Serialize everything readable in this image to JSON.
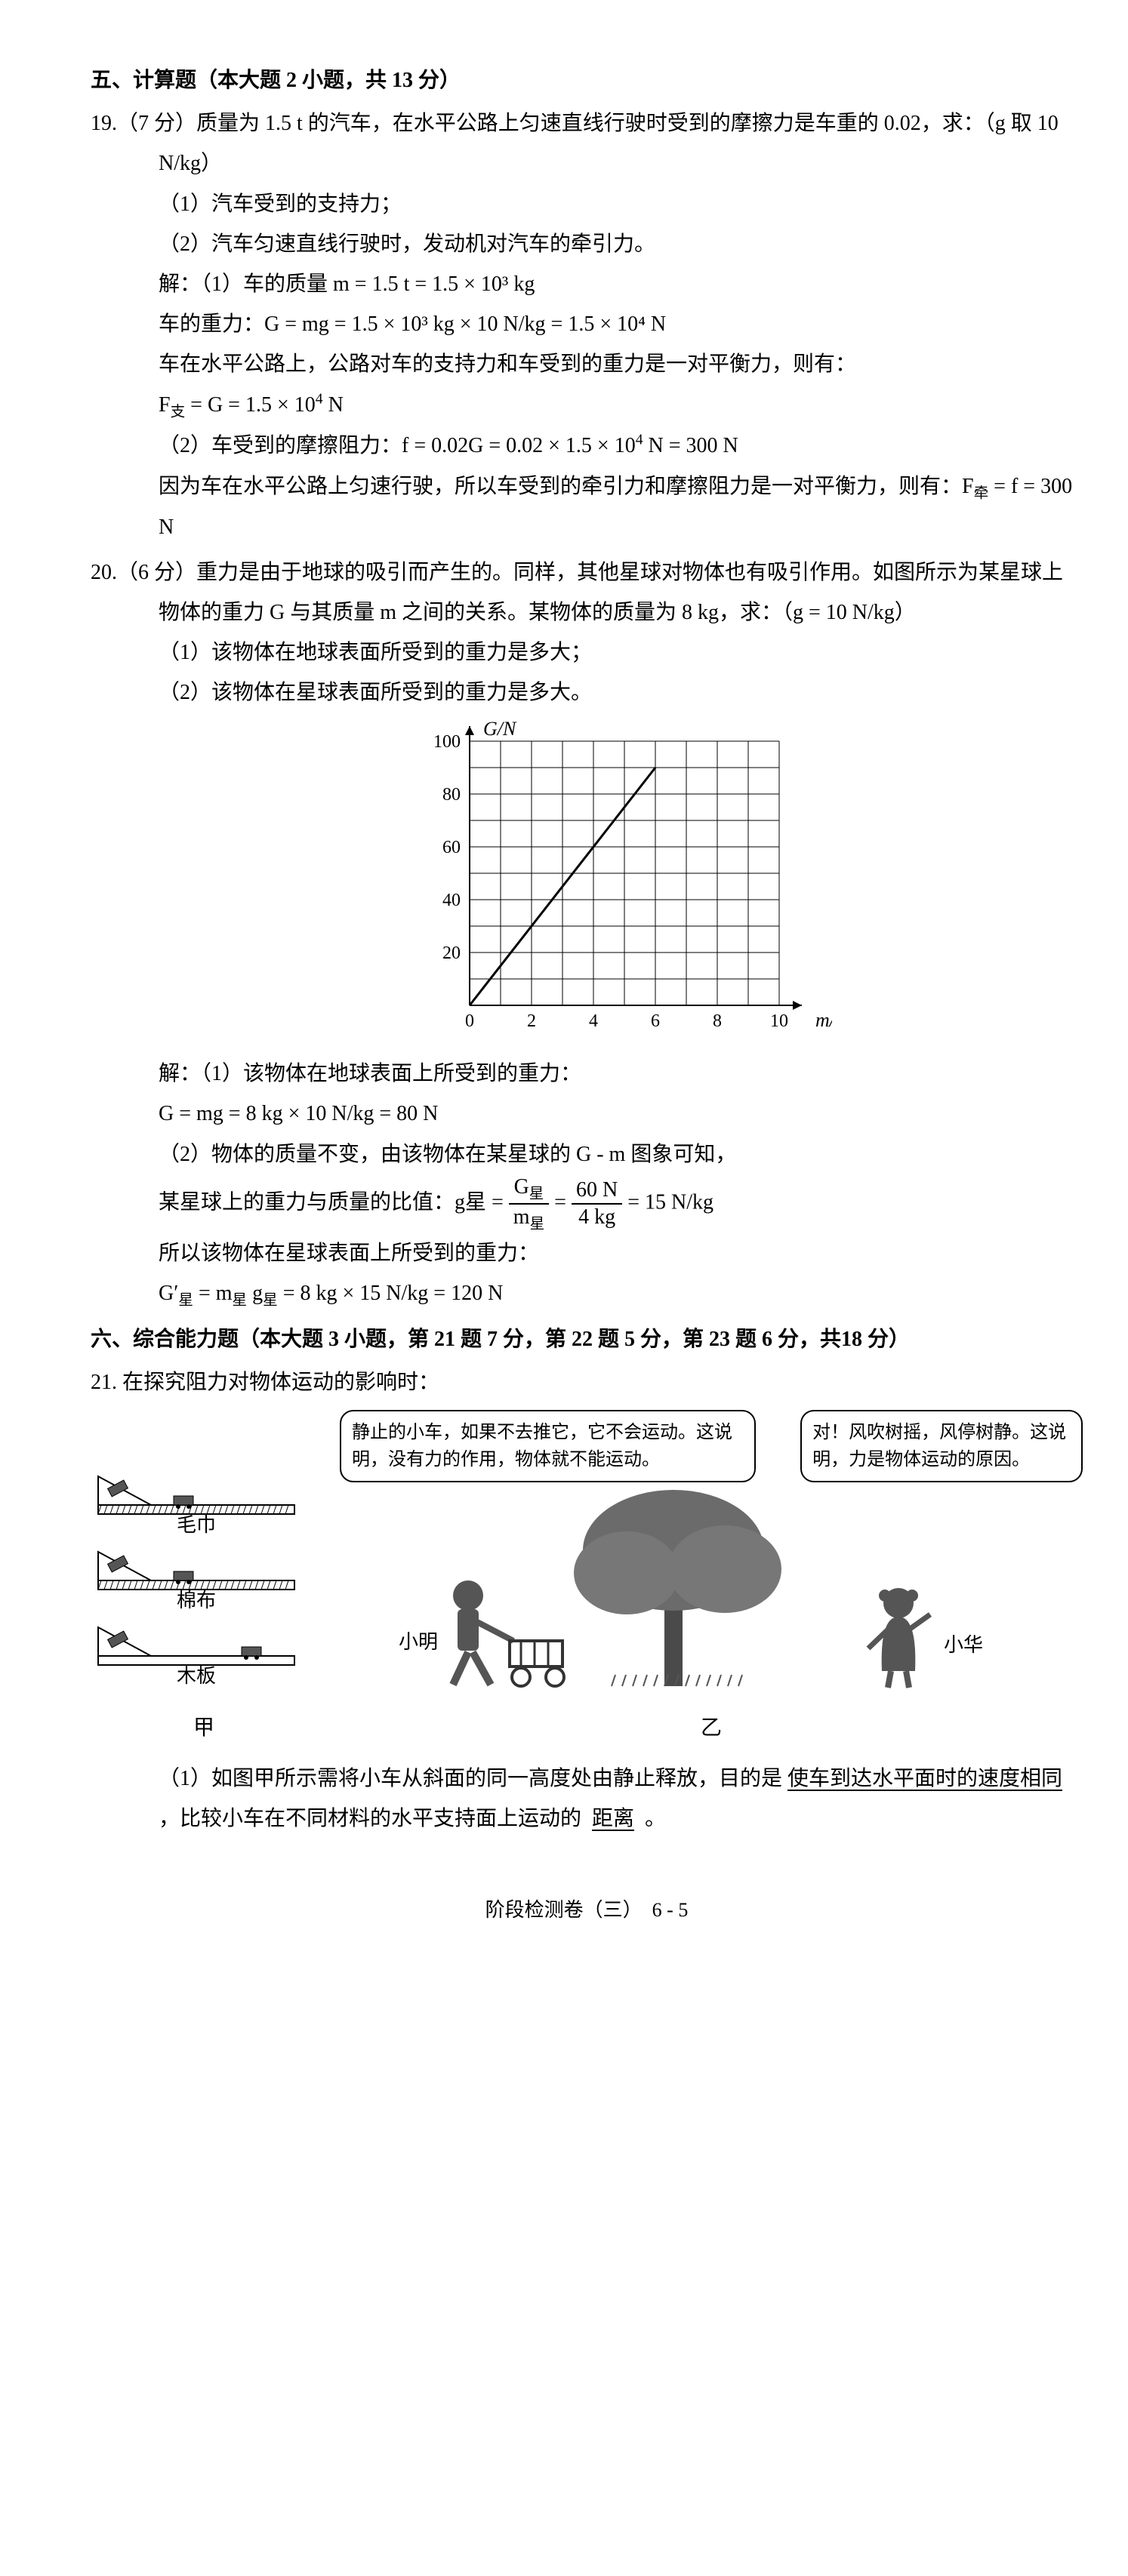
{
  "section5": {
    "title": "五、计算题（本大题 2 小题，共 13 分）",
    "q19": {
      "header": "19.（7 分）质量为 1.5 t 的汽车，在水平公路上匀速直线行驶时受到的摩擦力是车重的 0.02，求：（g 取 10 N/kg）",
      "p1": "（1）汽车受到的支持力；",
      "p2": "（2）汽车匀速直线行驶时，发动机对汽车的牵引力。",
      "a1": "解：（1）车的质量 m = 1.5 t = 1.5 × 10³ kg",
      "a2": "车的重力：G = mg = 1.5 × 10³ kg × 10 N/kg = 1.5 × 10⁴ N",
      "a3": "车在水平公路上，公路对车的支持力和车受到的重力是一对平衡力，则有：",
      "a4": "F支 = G = 1.5 × 10⁴ N",
      "a5": "（2）车受到的摩擦阻力：f = 0.02G = 0.02 × 1.5 × 10⁴ N = 300 N",
      "a6": "因为车在水平公路上匀速行驶，所以车受到的牵引力和摩擦阻力是一对平衡力，则有：F牵 = f = 300 N"
    },
    "q20": {
      "header": "20.（6 分）重力是由于地球的吸引而产生的。同样，其他星球对物体也有吸引作用。如图所示为某星球上物体的重力 G 与其质量 m 之间的关系。某物体的质量为 8 kg，求：（g = 10 N/kg）",
      "p1": "（1）该物体在地球表面所受到的重力是多大；",
      "p2": "（2）该物体在星球表面所受到的重力是多大。",
      "chart": {
        "type": "line",
        "xlabel": "m/kg",
        "ylabel": "G/N",
        "xlim": [
          0,
          10
        ],
        "ylim": [
          0,
          100
        ],
        "xticks": [
          0,
          2,
          4,
          6,
          8,
          10
        ],
        "yticks": [
          20,
          40,
          60,
          80,
          100
        ],
        "data_points": [
          [
            0,
            0
          ],
          [
            6,
            90
          ]
        ],
        "line_color": "#000000",
        "line_width": 3,
        "grid_color": "#000000",
        "grid_width": 1,
        "background_color": "#ffffff",
        "tick_fontsize": 24,
        "label_fontsize": 26
      },
      "a1": "解：（1）该物体在地球表面上所受到的重力：",
      "a2": "G = mg = 8 kg × 10 N/kg = 80 N",
      "a3": "（2）物体的质量不变，由该物体在某星球的 G - m 图象可知，",
      "a4_pre": "某星球上的重力与质量的比值：g星 = ",
      "a4_frac1_num": "G星",
      "a4_frac1_den": "m星",
      "a4_mid": " = ",
      "a4_frac2_num": "60 N",
      "a4_frac2_den": "4 kg",
      "a4_post": " = 15 N/kg",
      "a5": "所以该物体在星球表面上所受到的重力：",
      "a6": "G′星 = m星 g星 = 8 kg × 15 N/kg = 120 N"
    }
  },
  "section6": {
    "title": "六、综合能力题（本大题 3 小题，第 21 题 7 分，第 22 题 5 分，第 23 题 6 分，共18 分）",
    "q21": {
      "header": "21. 在探究阻力对物体运动的影响时：",
      "bubble1": "静止的小车，如果不去推它，它不会运动。这说明，没有力的作用，物体就不能运动。",
      "bubble2": "对！风吹树摇，风停树静。这说明，力是物体运动的原因。",
      "name1": "小明",
      "name2": "小华",
      "ramp_labels": [
        "毛巾",
        "棉布",
        "木板"
      ],
      "cap_left": "甲",
      "cap_right": "乙",
      "p1_a": "（1）如图甲所示需将小车从斜面的同一高度处由静止释放，目的是",
      "p1_b": "使车到达水平面时的速度相同",
      "p1_c": "，比较小车在不同材料的水平支持面上运动的",
      "p1_d": "距离",
      "p1_e": "。"
    }
  },
  "footer": "阶段检测卷（三）　6 - 5"
}
